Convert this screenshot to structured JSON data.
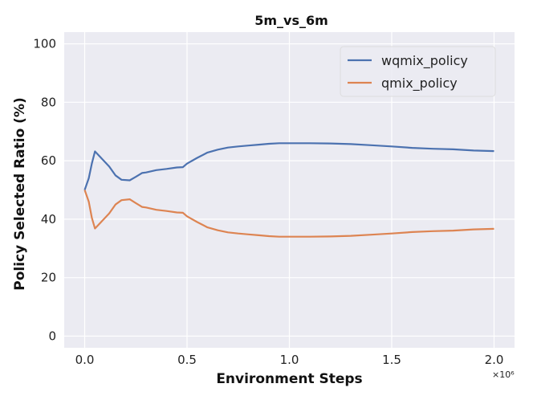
{
  "chart_data": {
    "type": "line",
    "title": "5m_vs_6m",
    "xlabel": "Environment Steps",
    "ylabel": "Policy Selected Ratio (%)",
    "x_offset_label": "×10⁶",
    "xlim": [
      -0.1,
      2.1
    ],
    "ylim": [
      -4,
      104
    ],
    "xticks": [
      "0.0",
      "0.5",
      "1.0",
      "1.5",
      "2.0"
    ],
    "xtick_values": [
      0.0,
      0.5,
      1.0,
      1.5,
      2.0
    ],
    "yticks": [
      "0",
      "20",
      "40",
      "60",
      "80",
      "100"
    ],
    "ytick_values": [
      0,
      20,
      40,
      60,
      80,
      100
    ],
    "grid": true,
    "background": "#ebebf2",
    "legend_position": "top-right",
    "series": [
      {
        "name": "wqmix_policy",
        "color": "#4c72b0",
        "x": [
          0.0,
          0.02,
          0.035,
          0.05,
          0.08,
          0.12,
          0.15,
          0.18,
          0.22,
          0.25,
          0.28,
          0.3,
          0.35,
          0.4,
          0.45,
          0.48,
          0.5,
          0.55,
          0.6,
          0.65,
          0.7,
          0.75,
          0.8,
          0.85,
          0.9,
          0.95,
          1.0,
          1.1,
          1.2,
          1.3,
          1.4,
          1.5,
          1.6,
          1.7,
          1.8,
          1.9,
          2.0
        ],
        "y": [
          50,
          54,
          59,
          63.2,
          61,
          58,
          55,
          53.5,
          53.3,
          54.5,
          55.8,
          56,
          56.8,
          57.2,
          57.7,
          57.8,
          59,
          61,
          62.8,
          63.8,
          64.5,
          64.9,
          65.2,
          65.5,
          65.8,
          66,
          66,
          66,
          65.9,
          65.7,
          65.3,
          64.9,
          64.4,
          64.1,
          63.9,
          63.5,
          63.3
        ]
      },
      {
        "name": "qmix_policy",
        "color": "#dd8452",
        "x": [
          0.0,
          0.02,
          0.035,
          0.05,
          0.08,
          0.12,
          0.15,
          0.18,
          0.22,
          0.25,
          0.28,
          0.3,
          0.35,
          0.4,
          0.45,
          0.48,
          0.5,
          0.55,
          0.6,
          0.65,
          0.7,
          0.75,
          0.8,
          0.85,
          0.9,
          0.95,
          1.0,
          1.1,
          1.2,
          1.3,
          1.4,
          1.5,
          1.6,
          1.7,
          1.8,
          1.9,
          2.0
        ],
        "y": [
          50,
          46,
          40.5,
          36.8,
          39,
          42,
          45,
          46.5,
          46.8,
          45.5,
          44.2,
          44,
          43.2,
          42.8,
          42.3,
          42.2,
          41,
          39,
          37.2,
          36.2,
          35.5,
          35.1,
          34.8,
          34.5,
          34.2,
          34,
          34,
          34,
          34.1,
          34.3,
          34.7,
          35.1,
          35.6,
          35.9,
          36.1,
          36.5,
          36.7
        ]
      }
    ]
  }
}
